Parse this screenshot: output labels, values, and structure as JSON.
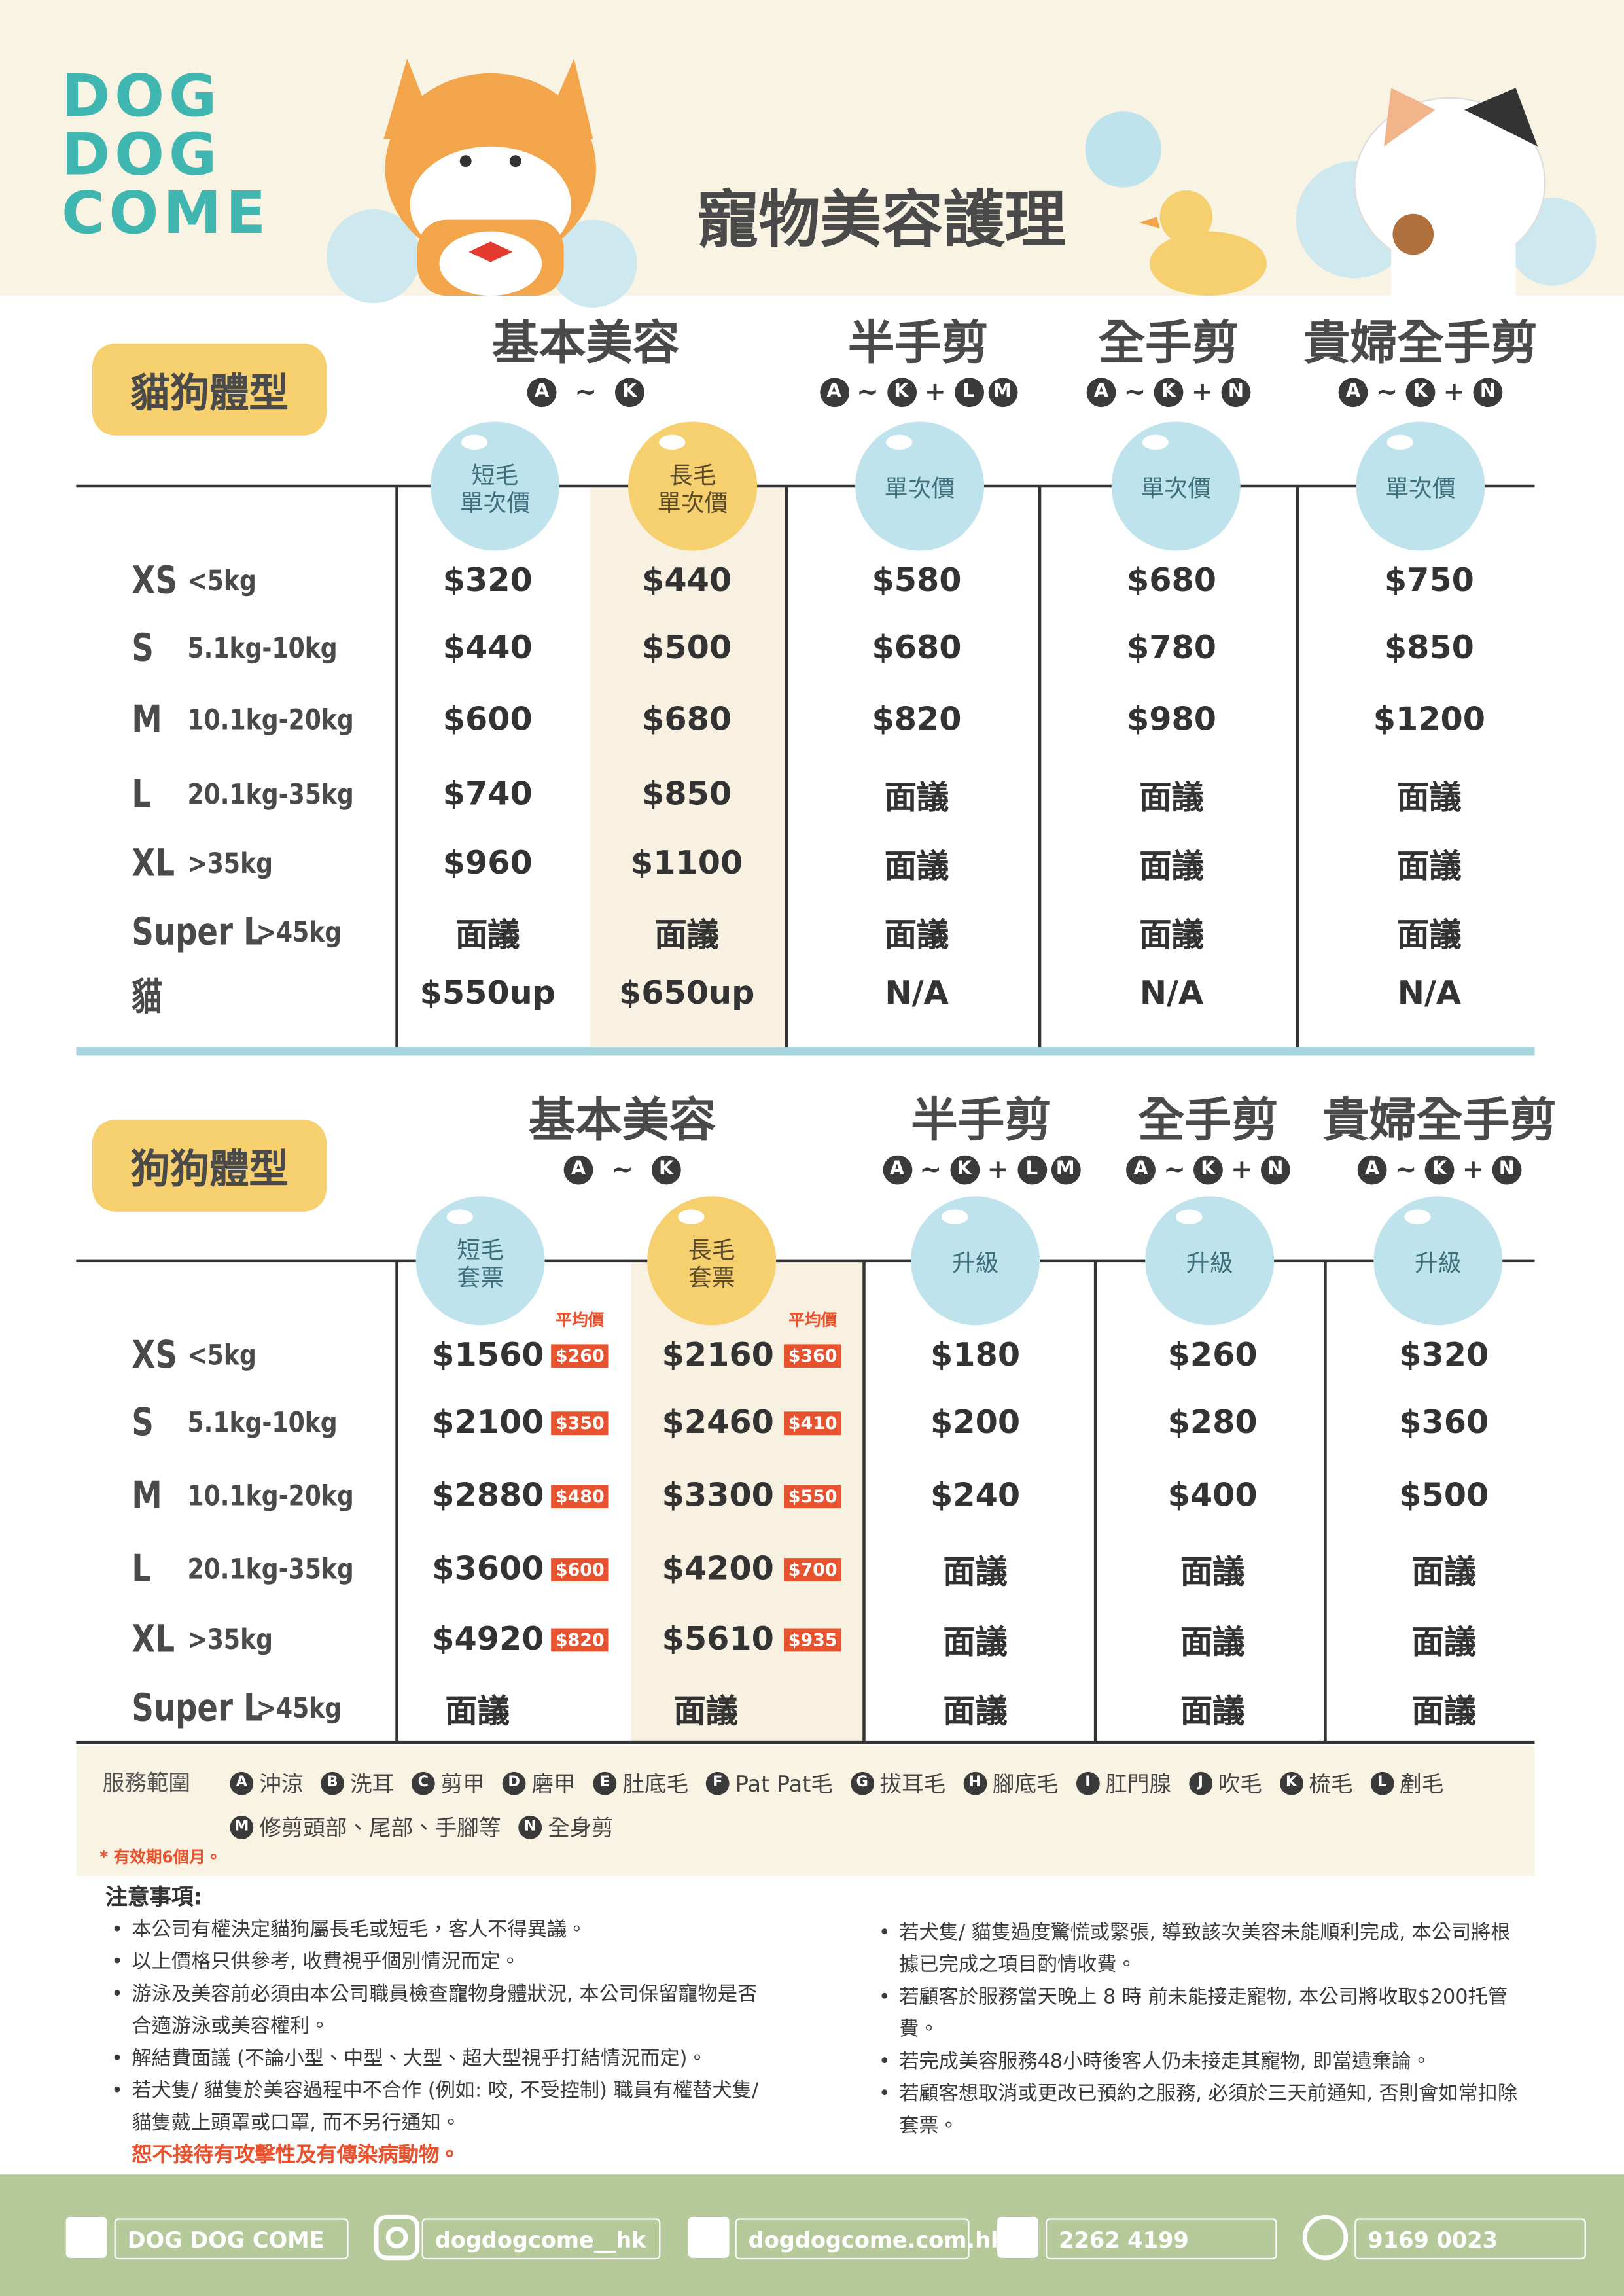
{
  "logo": [
    "DOG",
    "DOG",
    "COME"
  ],
  "title": "寵物美容護理",
  "cat_table": {
    "label": "貓狗體型",
    "groups": [
      {
        "name": "基本美容",
        "services": [
          "A",
          "~",
          "K"
        ]
      },
      {
        "name": "半手剪",
        "services": [
          "A",
          "~",
          "K",
          "+",
          "L",
          "M"
        ]
      },
      {
        "name": "全手剪",
        "services": [
          "A",
          "~",
          "K",
          "+",
          "N"
        ]
      },
      {
        "name": "貴婦全手剪",
        "services": [
          "A",
          "~",
          "K",
          "+",
          "N"
        ]
      }
    ],
    "columns": [
      [
        "短毛",
        "單次價"
      ],
      [
        "長毛",
        "單次價"
      ],
      [
        "單次價"
      ],
      [
        "單次價"
      ],
      [
        "單次價"
      ]
    ],
    "rows": [
      {
        "size": "XS",
        "weight": "<5kg",
        "prices": [
          "$320",
          "$440",
          "$580",
          "$680",
          "$750"
        ]
      },
      {
        "size": "S",
        "weight": "5.1kg-10kg",
        "prices": [
          "$440",
          "$500",
          "$680",
          "$780",
          "$850"
        ]
      },
      {
        "size": "M",
        "weight": "10.1kg-20kg",
        "prices": [
          "$600",
          "$680",
          "$820",
          "$980",
          "$1200"
        ]
      },
      {
        "size": "L",
        "weight": "20.1kg-35kg",
        "prices": [
          "$740",
          "$850",
          "面議",
          "面議",
          "面議"
        ]
      },
      {
        "size": "XL",
        "weight": ">35kg",
        "prices": [
          "$960",
          "$1100",
          "面議",
          "面議",
          "面議"
        ]
      },
      {
        "size": "Super L",
        "weight": ">45kg",
        "prices": [
          "面議",
          "面議",
          "面議",
          "面議",
          "面議"
        ]
      },
      {
        "size": "貓",
        "prices": [
          "$550up",
          "$650up",
          "N/A",
          "N/A",
          "N/A"
        ]
      }
    ]
  },
  "dog_table": {
    "label": "狗狗體型",
    "groups": [
      {
        "name": "基本美容",
        "services": [
          "A",
          "~",
          "K"
        ]
      },
      {
        "name": "半手剪",
        "services": [
          "A",
          "~",
          "K",
          "+",
          "L",
          "M"
        ]
      },
      {
        "name": "全手剪",
        "services": [
          "A",
          "~",
          "K",
          "+",
          "N"
        ]
      },
      {
        "name": "貴婦全手剪",
        "services": [
          "A",
          "~",
          "K",
          "+",
          "N"
        ]
      }
    ],
    "columns": [
      [
        "短毛",
        "套票"
      ],
      [
        "長毛",
        "套票"
      ],
      [
        "升級"
      ],
      [
        "升級"
      ],
      [
        "升級"
      ]
    ],
    "avg_label": "平均價",
    "rows": [
      {
        "size": "XS",
        "weight": "<5kg",
        "prices": [
          "$1560",
          "$2160",
          "$180",
          "$260",
          "$320"
        ],
        "avg": [
          "$260",
          "$360"
        ]
      },
      {
        "size": "S",
        "weight": "5.1kg-10kg",
        "prices": [
          "$2100",
          "$2460",
          "$200",
          "$280",
          "$360"
        ],
        "avg": [
          "$350",
          "$410"
        ]
      },
      {
        "size": "M",
        "weight": "10.1kg-20kg",
        "prices": [
          "$2880",
          "$3300",
          "$240",
          "$400",
          "$500"
        ],
        "avg": [
          "$480",
          "$550"
        ]
      },
      {
        "size": "L",
        "weight": "20.1kg-35kg",
        "prices": [
          "$3600",
          "$4200",
          "面議",
          "面議",
          "面議"
        ],
        "avg": [
          "$600",
          "$700"
        ]
      },
      {
        "size": "XL",
        "weight": ">35kg",
        "prices": [
          "$4920",
          "$5610",
          "面議",
          "面議",
          "面議"
        ],
        "avg": [
          "$820",
          "$935"
        ]
      },
      {
        "size": "Super L",
        "weight": ">45kg",
        "prices": [
          "面議",
          "面議",
          "面議",
          "面議",
          "面議"
        ]
      }
    ]
  },
  "services": {
    "label": "服務範圍",
    "items": [
      {
        "letter": "A",
        "name": "沖涼"
      },
      {
        "letter": "B",
        "name": "洗耳"
      },
      {
        "letter": "C",
        "name": "剪甲"
      },
      {
        "letter": "D",
        "name": "磨甲"
      },
      {
        "letter": "E",
        "name": "肚底毛"
      },
      {
        "letter": "F",
        "name": "Pat Pat毛"
      },
      {
        "letter": "G",
        "name": "拔耳毛"
      },
      {
        "letter": "H",
        "name": "腳底毛"
      },
      {
        "letter": "I",
        "name": "肛門腺"
      },
      {
        "letter": "J",
        "name": "吹毛"
      },
      {
        "letter": "K",
        "name": "梳毛"
      },
      {
        "letter": "L",
        "name": "剷毛"
      },
      {
        "letter": "M",
        "name": "修剪頭部、尾部、手腳等"
      },
      {
        "letter": "N",
        "name": "全身剪"
      }
    ],
    "validity": "* 有效期6個月。"
  },
  "notes": {
    "title": "注意事項:",
    "left": [
      "本公司有權決定貓狗屬長毛或短毛，客人不得異議。",
      "以上價格只供參考, 收費視乎個別情況而定。",
      "游泳及美容前必須由本公司職員檢查寵物身體狀況, 本公司保留寵物是否合適游泳或美容權利。",
      "解結費面議 (不論小型、中型、大型、超大型視乎打結情況而定)。",
      "若犬隻/ 貓隻於美容過程中不合作 (例如: 咬, 不受控制) 職員有權替犬隻/ 貓隻戴上頭罩或口罩, 而不另行通知。"
    ],
    "warning": "恕不接待有攻擊性及有傳染病動物。",
    "right": [
      "若犬隻/ 貓隻過度驚慌或緊張, 導致該次美容未能順利完成, 本公司將根據已完成之項目酌情收費。",
      "若顧客於服務當天晚上 8 時 前未能接走寵物, 本公司將收取$200托管費。",
      "若完成美容服務48小時後客人仍未接走其寵物, 即當遺棄論。",
      "若顧客想取消或更改已預約之服務, 必須於三天前通知, 否則會如常扣除套票。"
    ]
  },
  "footer": {
    "facebook": "DOG DOG COME",
    "instagram": "dogdogcome__hk",
    "website": "dogdogcome.com.hk",
    "phone": "2262 4199",
    "whatsapp": "9169 0023"
  }
}
